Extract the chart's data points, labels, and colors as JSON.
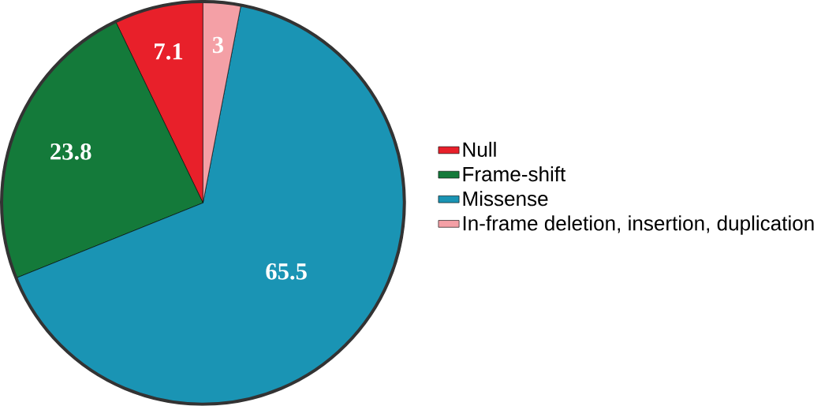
{
  "chart_data": {
    "type": "pie",
    "categories": [
      "Null",
      "Frame-shift",
      "Missense",
      "In-frame deletion, insertion, duplication"
    ],
    "values": [
      7.1,
      23.8,
      65.5,
      3
    ],
    "colors": [
      "#e8202a",
      "#147a3a",
      "#1a94b4",
      "#f4a0a6"
    ],
    "data_labels": true,
    "legend": "right"
  }
}
